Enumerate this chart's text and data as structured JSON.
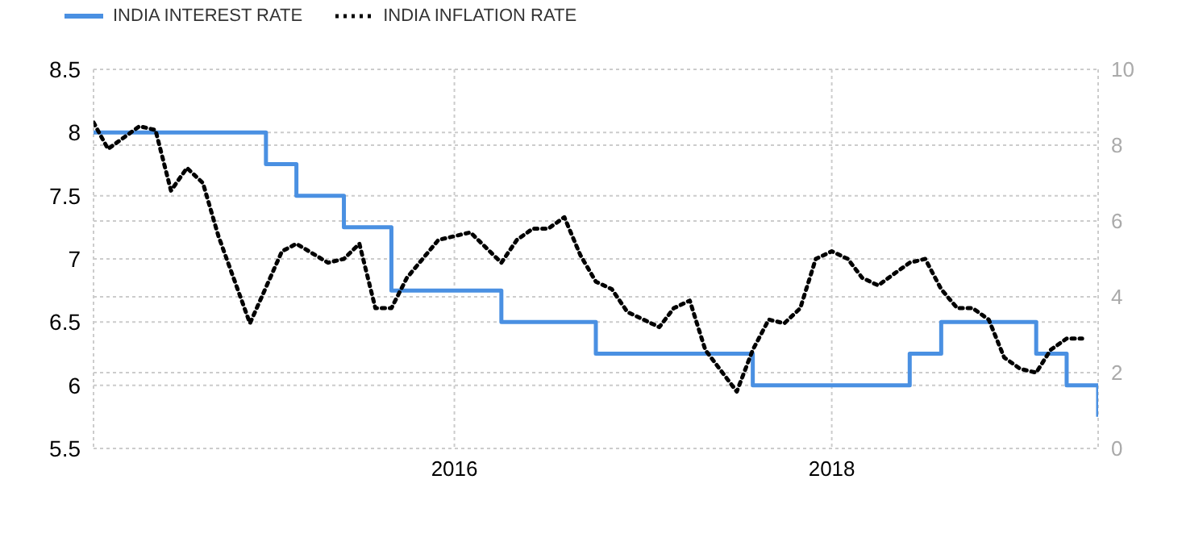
{
  "chart_data": {
    "type": "line",
    "legend": "top left",
    "grid": true,
    "xlim": [
      "2014-02",
      "2019-06"
    ],
    "xticks": [
      {
        "value": "2016-01",
        "label": "2016"
      },
      {
        "value": "2018-01",
        "label": "2018"
      }
    ],
    "ylim": [
      5.5,
      8.5
    ],
    "yticks": [
      5.5,
      6,
      6.5,
      7,
      7.5,
      8,
      8.5
    ],
    "y2lim": [
      0,
      10
    ],
    "y2ticks": [
      0,
      2,
      4,
      6,
      8,
      10
    ],
    "series": [
      {
        "name": "INDIA INTEREST RATE",
        "type": "step",
        "color": "#4a90e2",
        "line_style": "solid",
        "x": [
          "2014-02",
          "2015-01",
          "2015-03",
          "2015-06",
          "2015-09",
          "2016-04",
          "2016-10",
          "2017-08",
          "2018-06",
          "2018-08",
          "2019-02",
          "2019-04",
          "2019-06"
        ],
        "values": [
          8,
          7.75,
          7.5,
          7.25,
          6.75,
          6.5,
          6.25,
          6,
          6.25,
          6.5,
          6.25,
          6,
          5.75
        ]
      },
      {
        "name": "INDIA INFLATION RATE",
        "type": "line",
        "axis": "y2",
        "color": "#000000",
        "line_style": "dotted",
        "x": [
          "2014-02",
          "2014-03",
          "2014-05",
          "2014-06",
          "2014-07",
          "2014-08",
          "2014-09",
          "2014-10",
          "2014-12",
          "2015-02",
          "2015-03",
          "2015-05",
          "2015-06",
          "2015-07",
          "2015-08",
          "2015-09",
          "2015-10",
          "2015-12",
          "2016-02",
          "2016-04",
          "2016-05",
          "2016-06",
          "2016-07",
          "2016-08",
          "2016-09",
          "2016-10",
          "2016-11",
          "2016-12",
          "2017-02",
          "2017-03",
          "2017-04",
          "2017-05",
          "2017-07",
          "2017-08",
          "2017-09",
          "2017-10",
          "2017-11",
          "2017-12",
          "2018-01",
          "2018-02",
          "2018-03",
          "2018-04",
          "2018-05",
          "2018-06",
          "2018-07",
          "2018-08",
          "2018-09",
          "2018-10",
          "2018-11",
          "2018-12",
          "2019-01",
          "2019-02",
          "2019-03",
          "2019-04",
          "2019-05"
        ],
        "values": [
          8.6,
          7.9,
          8.5,
          8.4,
          6.8,
          7.4,
          7.0,
          5.6,
          3.3,
          5.2,
          5.4,
          4.9,
          5.0,
          5.4,
          3.7,
          3.7,
          4.5,
          5.5,
          5.7,
          4.9,
          5.5,
          5.8,
          5.8,
          6.1,
          5.1,
          4.4,
          4.2,
          3.6,
          3.2,
          3.7,
          3.9,
          2.6,
          1.5,
          2.6,
          3.4,
          3.3,
          3.7,
          5.0,
          5.2,
          5.0,
          4.5,
          4.3,
          4.6,
          4.9,
          5.0,
          4.2,
          3.7,
          3.7,
          3.4,
          2.4,
          2.1,
          2.0,
          2.6,
          2.9,
          2.9
        ]
      }
    ]
  }
}
